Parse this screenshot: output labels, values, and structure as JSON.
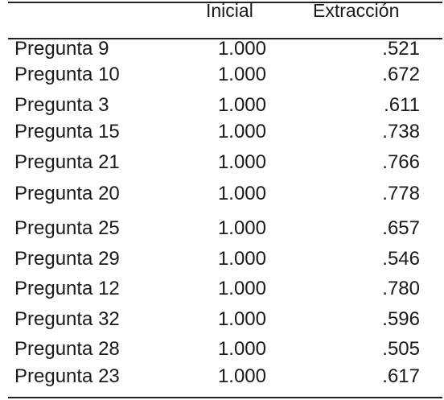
{
  "table": {
    "headers": {
      "label": "",
      "inicial": "Inicial",
      "extraccion": "Extracción"
    },
    "rows": [
      {
        "label": "Pregunta 9",
        "inicial": "1.000",
        "extraccion": ".521"
      },
      {
        "label": "Pregunta 10",
        "inicial": "1.000",
        "extraccion": ".672"
      },
      {
        "label": "Pregunta 3",
        "inicial": "1.000",
        "extraccion": ".611"
      },
      {
        "label": "Pregunta 15",
        "inicial": "1.000",
        "extraccion": ".738"
      },
      {
        "label": "Pregunta 21",
        "inicial": "1.000",
        "extraccion": ".766"
      },
      {
        "label": "Pregunta 20",
        "inicial": "1.000",
        "extraccion": ".778"
      },
      {
        "label": "Pregunta 25",
        "inicial": "1.000",
        "extraccion": ".657"
      },
      {
        "label": "Pregunta 29",
        "inicial": "1.000",
        "extraccion": ".546"
      },
      {
        "label": "Pregunta 12",
        "inicial": "1.000",
        "extraccion": ".780"
      },
      {
        "label": "Pregunta 32",
        "inicial": "1.000",
        "extraccion": ".596"
      },
      {
        "label": "Pregunta 28",
        "inicial": "1.000",
        "extraccion": ".505"
      },
      {
        "label": "Pregunta 23",
        "inicial": "1.000",
        "extraccion": ".617"
      }
    ]
  }
}
